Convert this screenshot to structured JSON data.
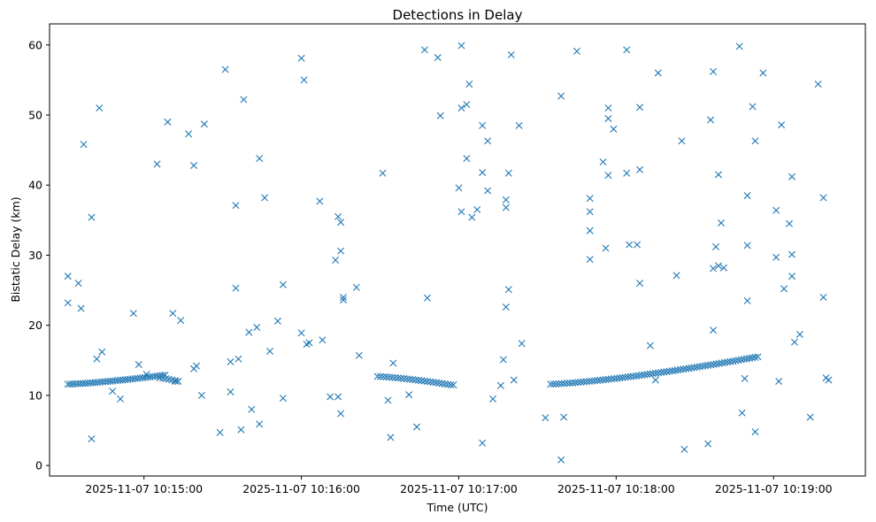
{
  "chart_data": {
    "type": "scatter",
    "title": "Detections in Delay",
    "xlabel": "Time (UTC)",
    "ylabel": "Bistatic Delay (km)",
    "marker": "x",
    "color": "#1f77b4",
    "x_unit": "seconds after 2025-11-07 10:14:00",
    "xlim": [
      24,
      335
    ],
    "ylim": [
      -1.5,
      63
    ],
    "x_ticks": [
      {
        "value": 60,
        "label": "2025-11-07 10:15:00"
      },
      {
        "value": 120,
        "label": "2025-11-07 10:16:00"
      },
      {
        "value": 180,
        "label": "2025-11-07 10:17:00"
      },
      {
        "value": 240,
        "label": "2025-11-07 10:18:00"
      },
      {
        "value": 300,
        "label": "2025-11-07 10:19:00"
      }
    ],
    "y_ticks": [
      0,
      10,
      20,
      30,
      40,
      50,
      60
    ],
    "tracks": [
      {
        "x_start": 31,
        "x_end": 68,
        "y_start": 11.6,
        "y_end": 12.9,
        "count": 40
      },
      {
        "x_start": 66,
        "x_end": 73,
        "y_start": 12.5,
        "y_end": 12.0,
        "count": 7
      },
      {
        "x_start": 149,
        "x_end": 177,
        "y_start": 12.7,
        "y_end": 11.5,
        "count": 26
      },
      {
        "x_start": 215,
        "x_end": 294,
        "y_start": 11.6,
        "y_end": 15.5,
        "count": 76
      }
    ],
    "scatter_points": [
      [
        31,
        27.0
      ],
      [
        31,
        23.2
      ],
      [
        35,
        26.0
      ],
      [
        36,
        22.4
      ],
      [
        37,
        45.8
      ],
      [
        40,
        35.4
      ],
      [
        40,
        3.8
      ],
      [
        42,
        15.2
      ],
      [
        43,
        51.0
      ],
      [
        44,
        16.2
      ],
      [
        48,
        10.6
      ],
      [
        51,
        9.5
      ],
      [
        56,
        21.7
      ],
      [
        58,
        14.4
      ],
      [
        61,
        13.0
      ],
      [
        65,
        43.0
      ],
      [
        69,
        49.0
      ],
      [
        71,
        21.7
      ],
      [
        72,
        12.0
      ],
      [
        73,
        12.0
      ],
      [
        74,
        20.7
      ],
      [
        77,
        47.3
      ],
      [
        79,
        42.8
      ],
      [
        79,
        13.8
      ],
      [
        80,
        14.2
      ],
      [
        82,
        10.0
      ],
      [
        83,
        48.7
      ],
      [
        89,
        4.7
      ],
      [
        91,
        56.5
      ],
      [
        93,
        14.8
      ],
      [
        93,
        10.5
      ],
      [
        95,
        37.1
      ],
      [
        95,
        25.3
      ],
      [
        96,
        15.2
      ],
      [
        97,
        5.1
      ],
      [
        98,
        52.2
      ],
      [
        100,
        19.0
      ],
      [
        101,
        8.0
      ],
      [
        103,
        19.7
      ],
      [
        104,
        43.8
      ],
      [
        104,
        5.9
      ],
      [
        106,
        38.2
      ],
      [
        108,
        16.3
      ],
      [
        111,
        20.6
      ],
      [
        113,
        25.8
      ],
      [
        113,
        9.6
      ],
      [
        120,
        58.1
      ],
      [
        120,
        18.9
      ],
      [
        121,
        55.0
      ],
      [
        122,
        17.3
      ],
      [
        123,
        17.5
      ],
      [
        127,
        37.7
      ],
      [
        128,
        17.9
      ],
      [
        131,
        9.8
      ],
      [
        133,
        29.3
      ],
      [
        134,
        9.8
      ],
      [
        134,
        35.5
      ],
      [
        135,
        34.7
      ],
      [
        135,
        30.6
      ],
      [
        135,
        7.4
      ],
      [
        136,
        24.0
      ],
      [
        136,
        23.6
      ],
      [
        141,
        25.4
      ],
      [
        142,
        15.7
      ],
      [
        151,
        41.7
      ],
      [
        153,
        9.3
      ],
      [
        154,
        4.0
      ],
      [
        155,
        14.6
      ],
      [
        161,
        10.1
      ],
      [
        164,
        5.5
      ],
      [
        167,
        59.3
      ],
      [
        168,
        23.9
      ],
      [
        172,
        58.2
      ],
      [
        173,
        49.9
      ],
      [
        178,
        11.5
      ],
      [
        180,
        39.6
      ],
      [
        181,
        36.2
      ],
      [
        181,
        51.0
      ],
      [
        181,
        59.9
      ],
      [
        183,
        43.8
      ],
      [
        183,
        51.5
      ],
      [
        184,
        54.4
      ],
      [
        185,
        35.4
      ],
      [
        187,
        36.5
      ],
      [
        189,
        3.2
      ],
      [
        189,
        41.8
      ],
      [
        189,
        48.5
      ],
      [
        191,
        39.2
      ],
      [
        191,
        46.3
      ],
      [
        193,
        9.5
      ],
      [
        196,
        11.4
      ],
      [
        197,
        15.1
      ],
      [
        198,
        36.8
      ],
      [
        198,
        22.6
      ],
      [
        198,
        37.9
      ],
      [
        199,
        25.1
      ],
      [
        199,
        41.7
      ],
      [
        200,
        58.6
      ],
      [
        201,
        12.2
      ],
      [
        203,
        48.5
      ],
      [
        204,
        17.4
      ],
      [
        213,
        6.8
      ],
      [
        219,
        0.8
      ],
      [
        219,
        52.7
      ],
      [
        220,
        6.9
      ],
      [
        225,
        59.1
      ],
      [
        230,
        38.1
      ],
      [
        230,
        36.2
      ],
      [
        230,
        33.5
      ],
      [
        230,
        29.4
      ],
      [
        235,
        43.3
      ],
      [
        236,
        31.0
      ],
      [
        237,
        51.0
      ],
      [
        237,
        49.5
      ],
      [
        237,
        41.4
      ],
      [
        239,
        48.0
      ],
      [
        244,
        59.3
      ],
      [
        244,
        41.7
      ],
      [
        245,
        31.5
      ],
      [
        248,
        31.5
      ],
      [
        249,
        26.0
      ],
      [
        249,
        51.1
      ],
      [
        249,
        42.2
      ],
      [
        253,
        17.1
      ],
      [
        255,
        12.2
      ],
      [
        256,
        56.0
      ],
      [
        263,
        27.1
      ],
      [
        265,
        46.3
      ],
      [
        266,
        2.3
      ],
      [
        275,
        3.1
      ],
      [
        276,
        49.3
      ],
      [
        277,
        56.2
      ],
      [
        277,
        19.3
      ],
      [
        277,
        28.1
      ],
      [
        278,
        31.2
      ],
      [
        279,
        28.5
      ],
      [
        279,
        41.5
      ],
      [
        280,
        34.6
      ],
      [
        281,
        28.2
      ],
      [
        287,
        59.8
      ],
      [
        288,
        7.5
      ],
      [
        289,
        12.4
      ],
      [
        290,
        31.4
      ],
      [
        290,
        23.5
      ],
      [
        290,
        38.5
      ],
      [
        292,
        51.2
      ],
      [
        293,
        46.3
      ],
      [
        293,
        4.8
      ],
      [
        296,
        56.0
      ],
      [
        301,
        36.4
      ],
      [
        301,
        29.7
      ],
      [
        302,
        12.0
      ],
      [
        303,
        48.6
      ],
      [
        304,
        25.2
      ],
      [
        306,
        34.5
      ],
      [
        307,
        41.2
      ],
      [
        307,
        30.1
      ],
      [
        307,
        27.0
      ],
      [
        308,
        17.6
      ],
      [
        310,
        18.7
      ],
      [
        314,
        6.9
      ],
      [
        317,
        54.4
      ],
      [
        319,
        38.2
      ],
      [
        319,
        24.0
      ],
      [
        320,
        12.5
      ],
      [
        321,
        12.2
      ]
    ]
  }
}
